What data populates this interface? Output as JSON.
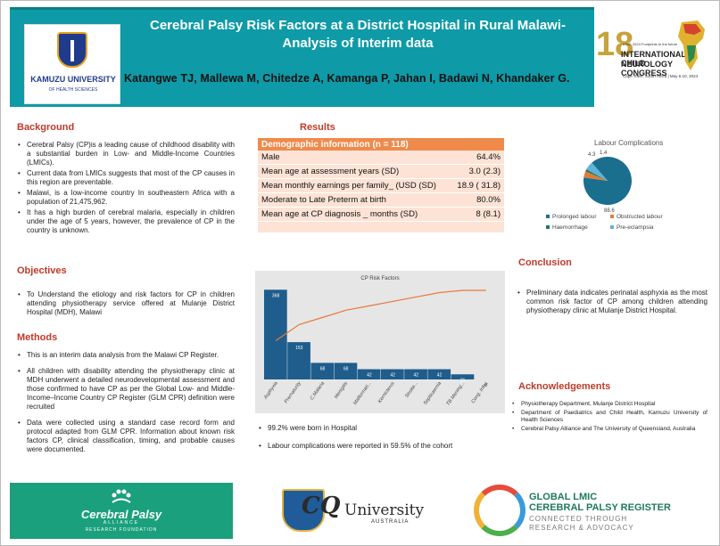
{
  "header": {
    "title_line1": "Cerebral Palsy Risk Factors at a District Hospital in Rural Malawi-",
    "title_line2": "Analysis of Interim data",
    "authors": "Katangwe TJ, Mallewa M, Chitedze A, Kamanga P, Jahan I, Badawi N, Khandaker  G.",
    "university_name": "KAMUZU UNIVERSITY",
    "university_sub": "OF HEALTH SCIENCES",
    "congress_number": "18",
    "congress_tagline": "ICNC 2024 Footprints to the future",
    "congress_line1": "INTERNATIONAL CHILD",
    "congress_line2": "NEUROLOGY CONGRESS",
    "congress_location": "Cape Town, South Africa | May 6-10, 2024"
  },
  "background": {
    "heading": "Background",
    "items": [
      "Cerebral Palsy (CP)is a leading cause of childhood disability with a substantial burden in Low- and Middle-Income Countries (LMICs).",
      "Current data from LMICs suggests that most of the CP causes in this region are preventable.",
      "Malawi, is a low-income country In southeastern Africa with a population of 21,475,962.",
      "It has a high burden of cerebral malaria, especially in children under the age of 5 years, however, the prevalence of CP in the country is unknown."
    ]
  },
  "objectives": {
    "heading": "Objectives",
    "items": [
      "To Understand the etiology and risk factors for CP  in children attending physiotherapy service offered at Mulanje District Hospital (MDH), Malawi"
    ]
  },
  "methods": {
    "heading": "Methods",
    "items": [
      "This is an interim data analysis from the Malawi CP Register.",
      "All children with disability attending the physiotherapy clinic at MDH underwent a detailed neurodevelopmental assessment and those confirmed to have CP as per the Global Low- and Middle-Income–Income Country CP Register (GLM CPR) definition were recruited",
      "Data were collected using a standard case record form and protocol adapted from GLM CPR. Information about known risk factors CP, clinical classification, timing, and probable causes were documented."
    ]
  },
  "results": {
    "heading": "Results",
    "table_title": "Demographic information (n = 118)",
    "rows": [
      {
        "label": "Male",
        "value": "64.4%"
      },
      {
        "label": "Mean age at assessment years (SD)",
        "value": "3.0 (2.3)"
      },
      {
        "label": "Mean monthly earnings  per family_ (USD (SD)",
        "value": "18.9 ( 31.8)"
      },
      {
        "label": "Moderate to Late Preterm at birth",
        "value": "80.0%"
      },
      {
        "label": "Mean age at CP diagnosis _ months (SD)",
        "value": "8 (8.1)"
      }
    ],
    "bullets": [
      "99.2% were born in Hospital",
      "Labour complications were reported in 59.5%  of the cohort"
    ]
  },
  "conclusion": {
    "heading": "Conclusion",
    "items": [
      "Preliminary data indicates perinatal asphyxia as the most common risk factor of CP among children attending physiotherapy clinic at Mulanje District Hospital."
    ]
  },
  "acknowledgements": {
    "heading": "Acknowledgements",
    "items": [
      "Physiotherapy Department, Mulanje District Hospital",
      "Department of Paediatrics and Child Health, Kamuzu University of Health Sciences",
      "Cerebral Palsy Alliance and The University of Queensland, Australia"
    ]
  },
  "chart_data": [
    {
      "type": "pie",
      "title": "Labour Complications",
      "categories": [
        "Prolonged labour",
        "Obstructed labour",
        "Haemorrhage",
        "Pre-eclampsia"
      ],
      "values": [
        88.6,
        4.3,
        1.4,
        5.7
      ],
      "data_labels": [
        "88.6",
        "4.3",
        "1.4",
        ""
      ],
      "colors": [
        "#1a6e8e",
        "#e07b39",
        "#1e7a5a",
        "#5fb3d9"
      ],
      "legend": "bottom"
    },
    {
      "type": "bar",
      "title": "CP Risk Factors",
      "categories": [
        "Asphyxia",
        "Prematurity",
        "C.Malaria",
        "Menigitis",
        "Malformati...",
        "Kernicterus",
        "Stroke...",
        "Septicaemia",
        "TB Mening...",
        "Cong. Infec"
      ],
      "values": [
        368,
        153,
        68,
        68,
        42,
        42,
        42,
        42,
        21,
        0
      ],
      "data_labels": [
        "368",
        "153",
        "68",
        "68",
        "42",
        "42",
        "42",
        "42",
        "21",
        "0"
      ],
      "cumulative_line": true,
      "bar_color": "#1f5d8c",
      "line_color": "#e8793a"
    }
  ],
  "footer": {
    "cp_name": "Cerebral Palsy",
    "cp_sub1": "ALLIANCE",
    "cp_sub2": "RESEARCH FOUNDATION",
    "cq_short": "CQ",
    "cq_rest": "University",
    "cq_country": "AUSTRALIA",
    "glmic_line1": "GLOBAL LMIC",
    "glmic_line2": "CEREBRAL PALSY REGISTER",
    "glmic_line3": "CONNECTED THROUGH",
    "glmic_line4": "RESEARCH & ADVOCACY"
  }
}
